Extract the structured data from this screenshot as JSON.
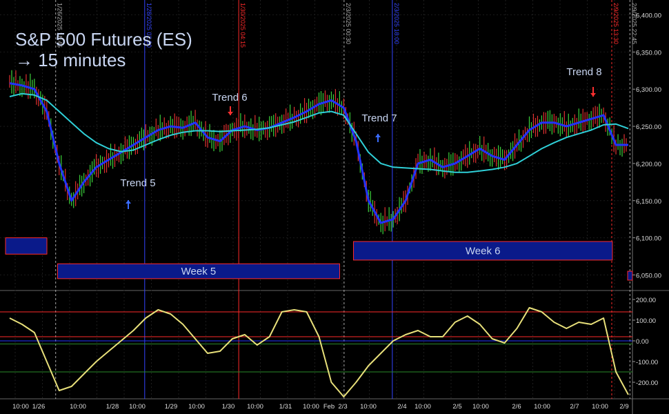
{
  "header": {
    "title": "S&P 500 Futures (ES)",
    "subtitle": "→ 15 minutes"
  },
  "trends": [
    {
      "label": "Trend 5",
      "arrow": "up",
      "color": "#3a6cff"
    },
    {
      "label": "Trend 6",
      "arrow": "down",
      "color": "#ff3030"
    },
    {
      "label": "Trend 7",
      "arrow": "up",
      "color": "#3a6cff"
    },
    {
      "label": "Trend 8",
      "arrow": "down",
      "color": "#ff3030"
    }
  ],
  "weeks": [
    {
      "label": "Week 5"
    },
    {
      "label": "Week 6"
    }
  ],
  "vertical_markers": [
    {
      "label": "1/26/2025 18:45",
      "color": "#aaaaaa",
      "style": "dashed"
    },
    {
      "label": "1/28/2025 02:30",
      "color": "#3344ff",
      "style": "solid"
    },
    {
      "label": "1/30/2025 04:15",
      "color": "#ff2a2a",
      "style": "solid"
    },
    {
      "label": "2/3/2025 00:30",
      "color": "#aaaaaa",
      "style": "dashed"
    },
    {
      "label": "2/3/2025 18:00",
      "color": "#3344ff",
      "style": "solid"
    },
    {
      "label": "2/9/2025 13:30",
      "color": "#ff2a2a",
      "style": "dashed"
    },
    {
      "label": "2/9/2025 22:45",
      "color": "#aaaaaa",
      "style": "dashed"
    }
  ],
  "chart_data": [
    {
      "type": "line",
      "title": "S&P 500 Futures (ES)",
      "subtitle": "→ 15 minutes",
      "ylim": [
        6030,
        6420
      ],
      "y_ticks": [
        "6,400.00",
        "6,350.00",
        "6,300.00",
        "6,250.00",
        "6,200.00",
        "6,150.00",
        "6,100.00",
        "6,050.00"
      ],
      "y_tick_values": [
        6400,
        6350,
        6300,
        6250,
        6200,
        6150,
        6100,
        6050
      ],
      "x_tick_labels": [
        "10:00",
        "1/26",
        "10:00",
        "1/28",
        "10:00",
        "1/29",
        "10:00",
        "1/30",
        "10:00",
        "1/31",
        "10:00",
        "Feb",
        "2/3",
        "10:00",
        "2/4",
        "10:00",
        "2/5",
        "10:00",
        "2/6",
        "10:00",
        "2/7",
        "10:00",
        "2/9"
      ],
      "x": [
        0,
        1,
        2,
        3,
        4,
        5,
        6,
        7,
        8,
        9,
        10,
        11,
        12,
        13,
        14,
        15,
        16,
        17,
        18,
        19,
        20,
        21,
        22,
        23,
        24,
        25,
        26,
        27,
        28,
        29,
        30,
        31,
        32,
        33,
        34,
        35,
        36,
        37,
        38,
        39,
        40,
        41,
        42,
        43,
        44,
        45,
        46,
        47,
        48,
        49,
        50
      ],
      "series": [
        {
          "color": "#2233ff",
          "values": [
            6308,
            6305,
            6300,
            6270,
            6200,
            6150,
            6175,
            6195,
            6205,
            6215,
            6225,
            6235,
            6245,
            6250,
            6248,
            6255,
            6235,
            6230,
            6245,
            6250,
            6245,
            6248,
            6255,
            6262,
            6270,
            6280,
            6285,
            6275,
            6230,
            6150,
            6120,
            6125,
            6150,
            6200,
            6205,
            6195,
            6200,
            6210,
            6220,
            6210,
            6205,
            6225,
            6245,
            6255,
            6255,
            6250,
            6255,
            6260,
            6265,
            6225,
            6225
          ]
        },
        {
          "color": "#2fd0d8",
          "values": [
            6290,
            6294,
            6292,
            6285,
            6270,
            6255,
            6240,
            6228,
            6220,
            6216,
            6218,
            6225,
            6232,
            6238,
            6242,
            6244,
            6244,
            6243,
            6244,
            6245,
            6246,
            6248,
            6252,
            6256,
            6262,
            6268,
            6270,
            6265,
            6240,
            6215,
            6200,
            6195,
            6194,
            6193,
            6192,
            6190,
            6188,
            6188,
            6190,
            6192,
            6195,
            6200,
            6210,
            6220,
            6228,
            6235,
            6240,
            6245,
            6252,
            6253,
            6247
          ]
        }
      ],
      "week_bands": [
        {
          "name": "Week 5",
          "low": 6045,
          "high": 6065
        },
        {
          "name": "Week 6",
          "low": 6070,
          "high": 6095
        }
      ]
    },
    {
      "type": "line",
      "title": "",
      "ylim": [
        -280,
        240
      ],
      "y_ticks": [
        "200.00",
        "100.00",
        "0.00",
        "-100.00",
        "-200.00"
      ],
      "y_tick_values": [
        200,
        100,
        0,
        -100,
        -200
      ],
      "horizontal_lines": [
        {
          "value": 140,
          "color": "#ff2a2a"
        },
        {
          "value": 20,
          "color": "#ff2a2a"
        },
        {
          "value": 0,
          "color": "#2233ff"
        },
        {
          "value": -15,
          "color": "#2a8a2a"
        },
        {
          "value": -150,
          "color": "#2a8a2a"
        }
      ],
      "x": [
        0,
        1,
        2,
        3,
        4,
        5,
        6,
        7,
        8,
        9,
        10,
        11,
        12,
        13,
        14,
        15,
        16,
        17,
        18,
        19,
        20,
        21,
        22,
        23,
        24,
        25,
        26,
        27,
        28,
        29,
        30,
        31,
        32,
        33,
        34,
        35,
        36,
        37,
        38,
        39,
        40,
        41,
        42,
        43,
        44,
        45,
        46,
        47,
        48,
        49,
        50
      ],
      "series": [
        {
          "color": "#e8e07a",
          "values": [
            110,
            80,
            40,
            -100,
            -240,
            -220,
            -160,
            -100,
            -50,
            0,
            50,
            110,
            150,
            130,
            80,
            10,
            -60,
            -50,
            10,
            30,
            -20,
            20,
            140,
            150,
            140,
            20,
            -200,
            -270,
            -200,
            -120,
            -60,
            0,
            30,
            50,
            20,
            20,
            90,
            120,
            80,
            10,
            -10,
            60,
            160,
            140,
            90,
            60,
            90,
            80,
            110,
            -150,
            -260
          ]
        }
      ]
    }
  ]
}
